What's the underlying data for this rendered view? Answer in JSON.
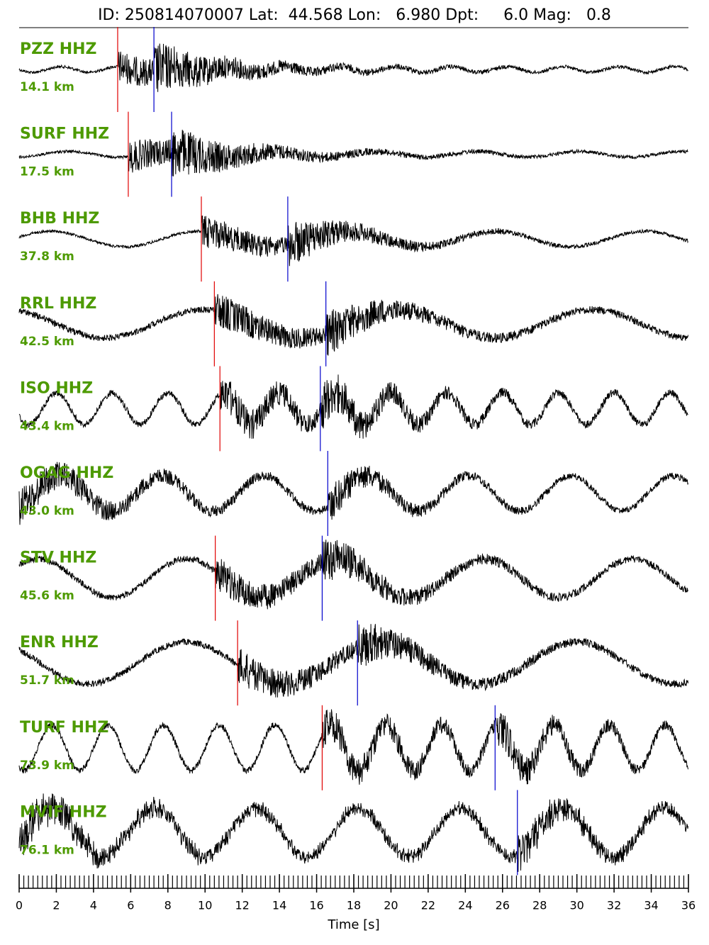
{
  "chart_data": {
    "type": "seismogram",
    "title": "ID: 250814070007 Lat:  44.568 Lon:   6.980 Dpt:     6.0 Mag:   0.8",
    "xlabel": "Time [s]",
    "xlim": [
      0,
      36
    ],
    "xticks": [
      0,
      2,
      4,
      6,
      8,
      10,
      12,
      14,
      16,
      18,
      20,
      22,
      24,
      26,
      28,
      30,
      32,
      34,
      36
    ],
    "p_color": "#e00000",
    "s_color": "#0000cc",
    "traces": [
      {
        "name": "PZZ HHZ",
        "distance": "14.1 km",
        "p_pick": 5.3,
        "s_pick": 7.25
      },
      {
        "name": "SURF HHZ",
        "distance": "17.5 km",
        "p_pick": 5.87,
        "s_pick": 8.2
      },
      {
        "name": "BHB HHZ",
        "distance": "37.8 km",
        "p_pick": 9.8,
        "s_pick": 14.45
      },
      {
        "name": "RRL HHZ",
        "distance": "42.5 km",
        "p_pick": 10.5,
        "s_pick": 16.5
      },
      {
        "name": "ISO HHZ",
        "distance": "43.4 km",
        "p_pick": 10.8,
        "s_pick": 16.2
      },
      {
        "name": "OGAG HHZ",
        "distance": "43.0 km",
        "p_pick": null,
        "s_pick": 16.6
      },
      {
        "name": "STV HHZ",
        "distance": "45.6 km",
        "p_pick": 10.55,
        "s_pick": 16.3
      },
      {
        "name": "ENR HHZ",
        "distance": "51.7 km",
        "p_pick": 11.75,
        "s_pick": 18.2
      },
      {
        "name": "TURF HHZ",
        "distance": "73.9 km",
        "p_pick": 16.3,
        "s_pick": 25.6
      },
      {
        "name": "MVIF HHZ",
        "distance": "76.1 km",
        "p_pick": null,
        "s_pick": 26.8
      }
    ]
  }
}
